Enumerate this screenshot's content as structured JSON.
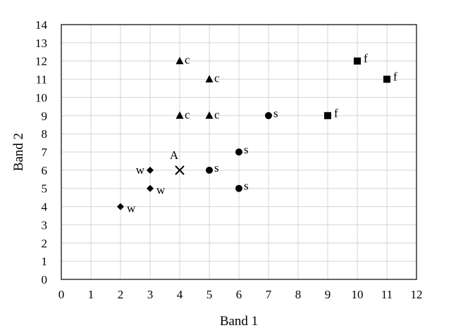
{
  "chart_data": {
    "type": "scatter",
    "xlabel": "Band 1",
    "ylabel": "Band 2",
    "xlim": [
      0,
      12
    ],
    "ylim": [
      0,
      14
    ],
    "xticks": [
      "0",
      "1",
      "2",
      "3",
      "4",
      "5",
      "6",
      "7",
      "8",
      "9",
      "10",
      "11",
      "12"
    ],
    "yticks": [
      "0",
      "1",
      "2",
      "3",
      "4",
      "5",
      "6",
      "7",
      "8",
      "9",
      "10",
      "11",
      "12",
      "13",
      "14"
    ],
    "grid": true,
    "legend": "none",
    "series": [
      {
        "marker": "triangle",
        "label": "c",
        "points": [
          [
            4,
            12
          ],
          [
            5,
            11
          ],
          [
            4,
            9
          ],
          [
            5,
            9
          ]
        ]
      },
      {
        "marker": "circle",
        "label": "s",
        "points": [
          [
            7,
            9
          ],
          [
            6,
            7
          ],
          [
            5,
            6
          ],
          [
            6,
            5
          ]
        ]
      },
      {
        "marker": "square",
        "label": "f",
        "points": [
          [
            10,
            12
          ],
          [
            11,
            11
          ],
          [
            9,
            9
          ]
        ]
      },
      {
        "marker": "diamond",
        "label": "w",
        "points": [
          [
            3,
            6
          ],
          [
            3,
            5
          ],
          [
            2,
            4
          ]
        ]
      },
      {
        "marker": "x",
        "label": "A",
        "points": [
          [
            4,
            6
          ]
        ]
      }
    ]
  }
}
